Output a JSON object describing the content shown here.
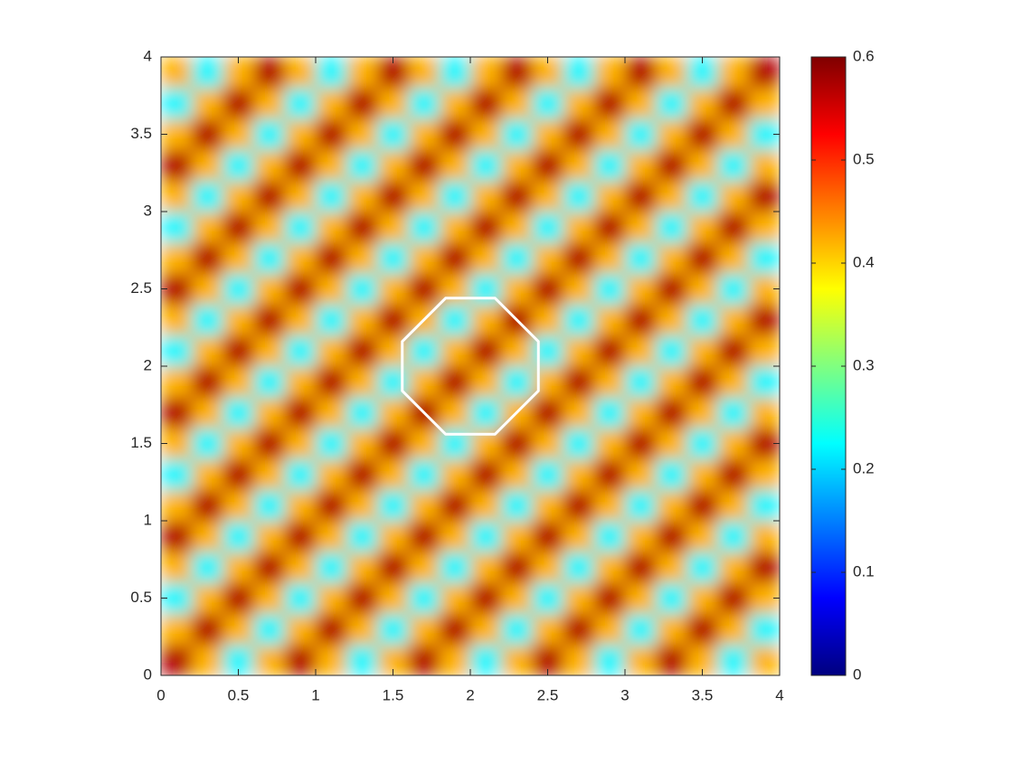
{
  "chart_data": {
    "type": "heatmap",
    "colormap": "jet",
    "x": [
      0.1,
      0.3,
      0.5,
      0.7,
      0.9,
      1.1,
      1.3,
      1.5,
      1.7,
      1.9,
      2.1,
      2.3,
      2.5,
      2.7,
      2.9,
      3.1,
      3.3,
      3.5,
      3.7,
      3.9
    ],
    "y": [
      0.1,
      0.3,
      0.5,
      0.7,
      0.9,
      1.1,
      1.3,
      1.5,
      1.7,
      1.9,
      2.1,
      2.3,
      2.5,
      2.7,
      2.9,
      3.1,
      3.3,
      3.5,
      3.7,
      3.9
    ],
    "z": [
      [
        0.57,
        0.42,
        0.22,
        0.42,
        0.57,
        0.42,
        0.22,
        0.42,
        0.57,
        0.42,
        0.22,
        0.42,
        0.57,
        0.42,
        0.22,
        0.42,
        0.57,
        0.42,
        0.22,
        0.42
      ],
      [
        0.42,
        0.57,
        0.42,
        0.22,
        0.42,
        0.57,
        0.42,
        0.22,
        0.42,
        0.57,
        0.42,
        0.22,
        0.42,
        0.57,
        0.42,
        0.22,
        0.42,
        0.57,
        0.42,
        0.22
      ],
      [
        0.22,
        0.42,
        0.57,
        0.42,
        0.22,
        0.42,
        0.57,
        0.42,
        0.22,
        0.42,
        0.57,
        0.42,
        0.22,
        0.42,
        0.57,
        0.42,
        0.22,
        0.42,
        0.57,
        0.42
      ],
      [
        0.42,
        0.22,
        0.42,
        0.57,
        0.42,
        0.22,
        0.42,
        0.57,
        0.42,
        0.22,
        0.42,
        0.57,
        0.42,
        0.22,
        0.42,
        0.57,
        0.42,
        0.22,
        0.42,
        0.57
      ],
      [
        0.57,
        0.42,
        0.22,
        0.42,
        0.57,
        0.42,
        0.22,
        0.42,
        0.57,
        0.42,
        0.22,
        0.42,
        0.57,
        0.42,
        0.22,
        0.42,
        0.57,
        0.42,
        0.22,
        0.42
      ],
      [
        0.42,
        0.57,
        0.42,
        0.22,
        0.42,
        0.57,
        0.42,
        0.22,
        0.42,
        0.57,
        0.42,
        0.22,
        0.42,
        0.57,
        0.42,
        0.22,
        0.42,
        0.57,
        0.42,
        0.22
      ],
      [
        0.22,
        0.42,
        0.57,
        0.42,
        0.22,
        0.42,
        0.57,
        0.42,
        0.22,
        0.42,
        0.57,
        0.42,
        0.22,
        0.42,
        0.57,
        0.42,
        0.22,
        0.42,
        0.57,
        0.42
      ],
      [
        0.42,
        0.22,
        0.42,
        0.57,
        0.42,
        0.22,
        0.42,
        0.57,
        0.42,
        0.22,
        0.42,
        0.57,
        0.42,
        0.22,
        0.42,
        0.57,
        0.42,
        0.22,
        0.42,
        0.57
      ],
      [
        0.57,
        0.42,
        0.22,
        0.42,
        0.57,
        0.42,
        0.22,
        0.42,
        0.57,
        0.42,
        0.22,
        0.42,
        0.57,
        0.42,
        0.22,
        0.42,
        0.57,
        0.42,
        0.22,
        0.42
      ],
      [
        0.42,
        0.57,
        0.42,
        0.22,
        0.42,
        0.57,
        0.42,
        0.22,
        0.42,
        0.57,
        0.42,
        0.22,
        0.42,
        0.57,
        0.42,
        0.22,
        0.42,
        0.57,
        0.42,
        0.22
      ],
      [
        0.22,
        0.42,
        0.57,
        0.42,
        0.22,
        0.42,
        0.57,
        0.42,
        0.22,
        0.42,
        0.57,
        0.42,
        0.22,
        0.42,
        0.57,
        0.42,
        0.22,
        0.42,
        0.57,
        0.42
      ],
      [
        0.42,
        0.22,
        0.42,
        0.57,
        0.42,
        0.22,
        0.42,
        0.57,
        0.42,
        0.22,
        0.42,
        0.57,
        0.42,
        0.22,
        0.42,
        0.57,
        0.42,
        0.22,
        0.42,
        0.57
      ],
      [
        0.57,
        0.42,
        0.22,
        0.42,
        0.57,
        0.42,
        0.22,
        0.42,
        0.57,
        0.42,
        0.22,
        0.42,
        0.57,
        0.42,
        0.22,
        0.42,
        0.57,
        0.42,
        0.22,
        0.42
      ],
      [
        0.42,
        0.57,
        0.42,
        0.22,
        0.42,
        0.57,
        0.42,
        0.22,
        0.42,
        0.57,
        0.42,
        0.22,
        0.42,
        0.57,
        0.42,
        0.22,
        0.42,
        0.57,
        0.42,
        0.22
      ],
      [
        0.22,
        0.42,
        0.57,
        0.42,
        0.22,
        0.42,
        0.57,
        0.42,
        0.22,
        0.42,
        0.57,
        0.42,
        0.22,
        0.42,
        0.57,
        0.42,
        0.22,
        0.42,
        0.57,
        0.42
      ],
      [
        0.42,
        0.22,
        0.42,
        0.57,
        0.42,
        0.22,
        0.42,
        0.57,
        0.42,
        0.22,
        0.42,
        0.57,
        0.42,
        0.22,
        0.42,
        0.57,
        0.42,
        0.22,
        0.42,
        0.57
      ],
      [
        0.57,
        0.42,
        0.22,
        0.42,
        0.57,
        0.42,
        0.22,
        0.42,
        0.57,
        0.42,
        0.22,
        0.42,
        0.57,
        0.42,
        0.22,
        0.42,
        0.57,
        0.42,
        0.22,
        0.42
      ],
      [
        0.42,
        0.57,
        0.42,
        0.22,
        0.42,
        0.57,
        0.42,
        0.22,
        0.42,
        0.57,
        0.42,
        0.22,
        0.42,
        0.57,
        0.42,
        0.22,
        0.42,
        0.57,
        0.42,
        0.22
      ],
      [
        0.22,
        0.42,
        0.57,
        0.42,
        0.22,
        0.42,
        0.57,
        0.42,
        0.22,
        0.42,
        0.57,
        0.42,
        0.22,
        0.42,
        0.57,
        0.42,
        0.22,
        0.42,
        0.57,
        0.42
      ],
      [
        0.42,
        0.22,
        0.42,
        0.57,
        0.42,
        0.22,
        0.42,
        0.57,
        0.42,
        0.22,
        0.42,
        0.57,
        0.42,
        0.22,
        0.42,
        0.57,
        0.42,
        0.22,
        0.42,
        0.57
      ]
    ],
    "boundary": {
      "x": [
        1.84,
        2.16,
        2.44,
        2.44,
        2.16,
        1.84,
        1.56,
        1.56
      ],
      "y": [
        2.44,
        2.44,
        2.16,
        1.84,
        1.56,
        1.56,
        1.84,
        2.16
      ],
      "color": "#ffffff"
    },
    "xlim": [
      0,
      4
    ],
    "xticks": [
      0,
      0.5,
      1,
      1.5,
      2,
      2.5,
      3,
      3.5,
      4
    ],
    "ylim": [
      0,
      4
    ],
    "yticks": [
      0,
      0.5,
      1,
      1.5,
      2,
      2.5,
      3,
      3.5,
      4
    ],
    "clim": [
      0,
      0.6
    ],
    "cticks": [
      0,
      0.1,
      0.2,
      0.3,
      0.4,
      0.5,
      0.6
    ]
  }
}
